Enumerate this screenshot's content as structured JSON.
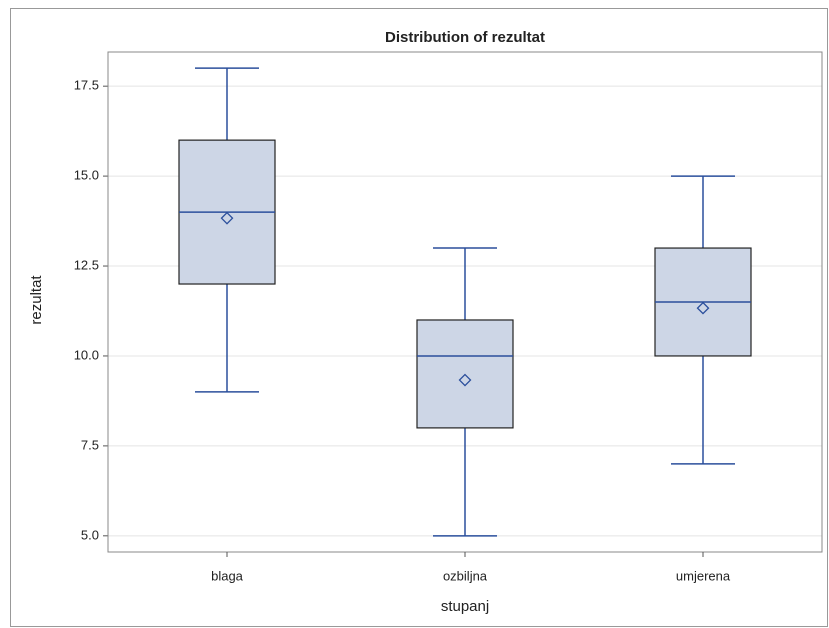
{
  "chart_data": {
    "type": "box",
    "title": "Distribution of rezultat",
    "x_label": "stupanj",
    "y_label": "rezultat",
    "categories": [
      "blaga",
      "ozbiljna",
      "umjerena"
    ],
    "min": [
      9,
      5,
      7
    ],
    "q1": [
      12,
      8,
      10
    ],
    "median": [
      14,
      10,
      11.5
    ],
    "q3": [
      16,
      11,
      13
    ],
    "max": [
      18,
      13,
      15
    ],
    "mean": [
      13.83,
      9.33,
      11.33
    ],
    "color": "#cdd6e6",
    "line_color": "#2b4f9c",
    "ylim": [
      4.55,
      18.45
    ],
    "yticks": [
      {
        "value": 5,
        "label": "5.0"
      },
      {
        "value": 7.5,
        "label": "7.5"
      },
      {
        "value": 10,
        "label": "10.0"
      },
      {
        "value": 12.5,
        "label": "12.5"
      },
      {
        "value": 15,
        "label": "15.0"
      },
      {
        "value": 17.5,
        "label": "17.5"
      }
    ],
    "grid": true
  }
}
